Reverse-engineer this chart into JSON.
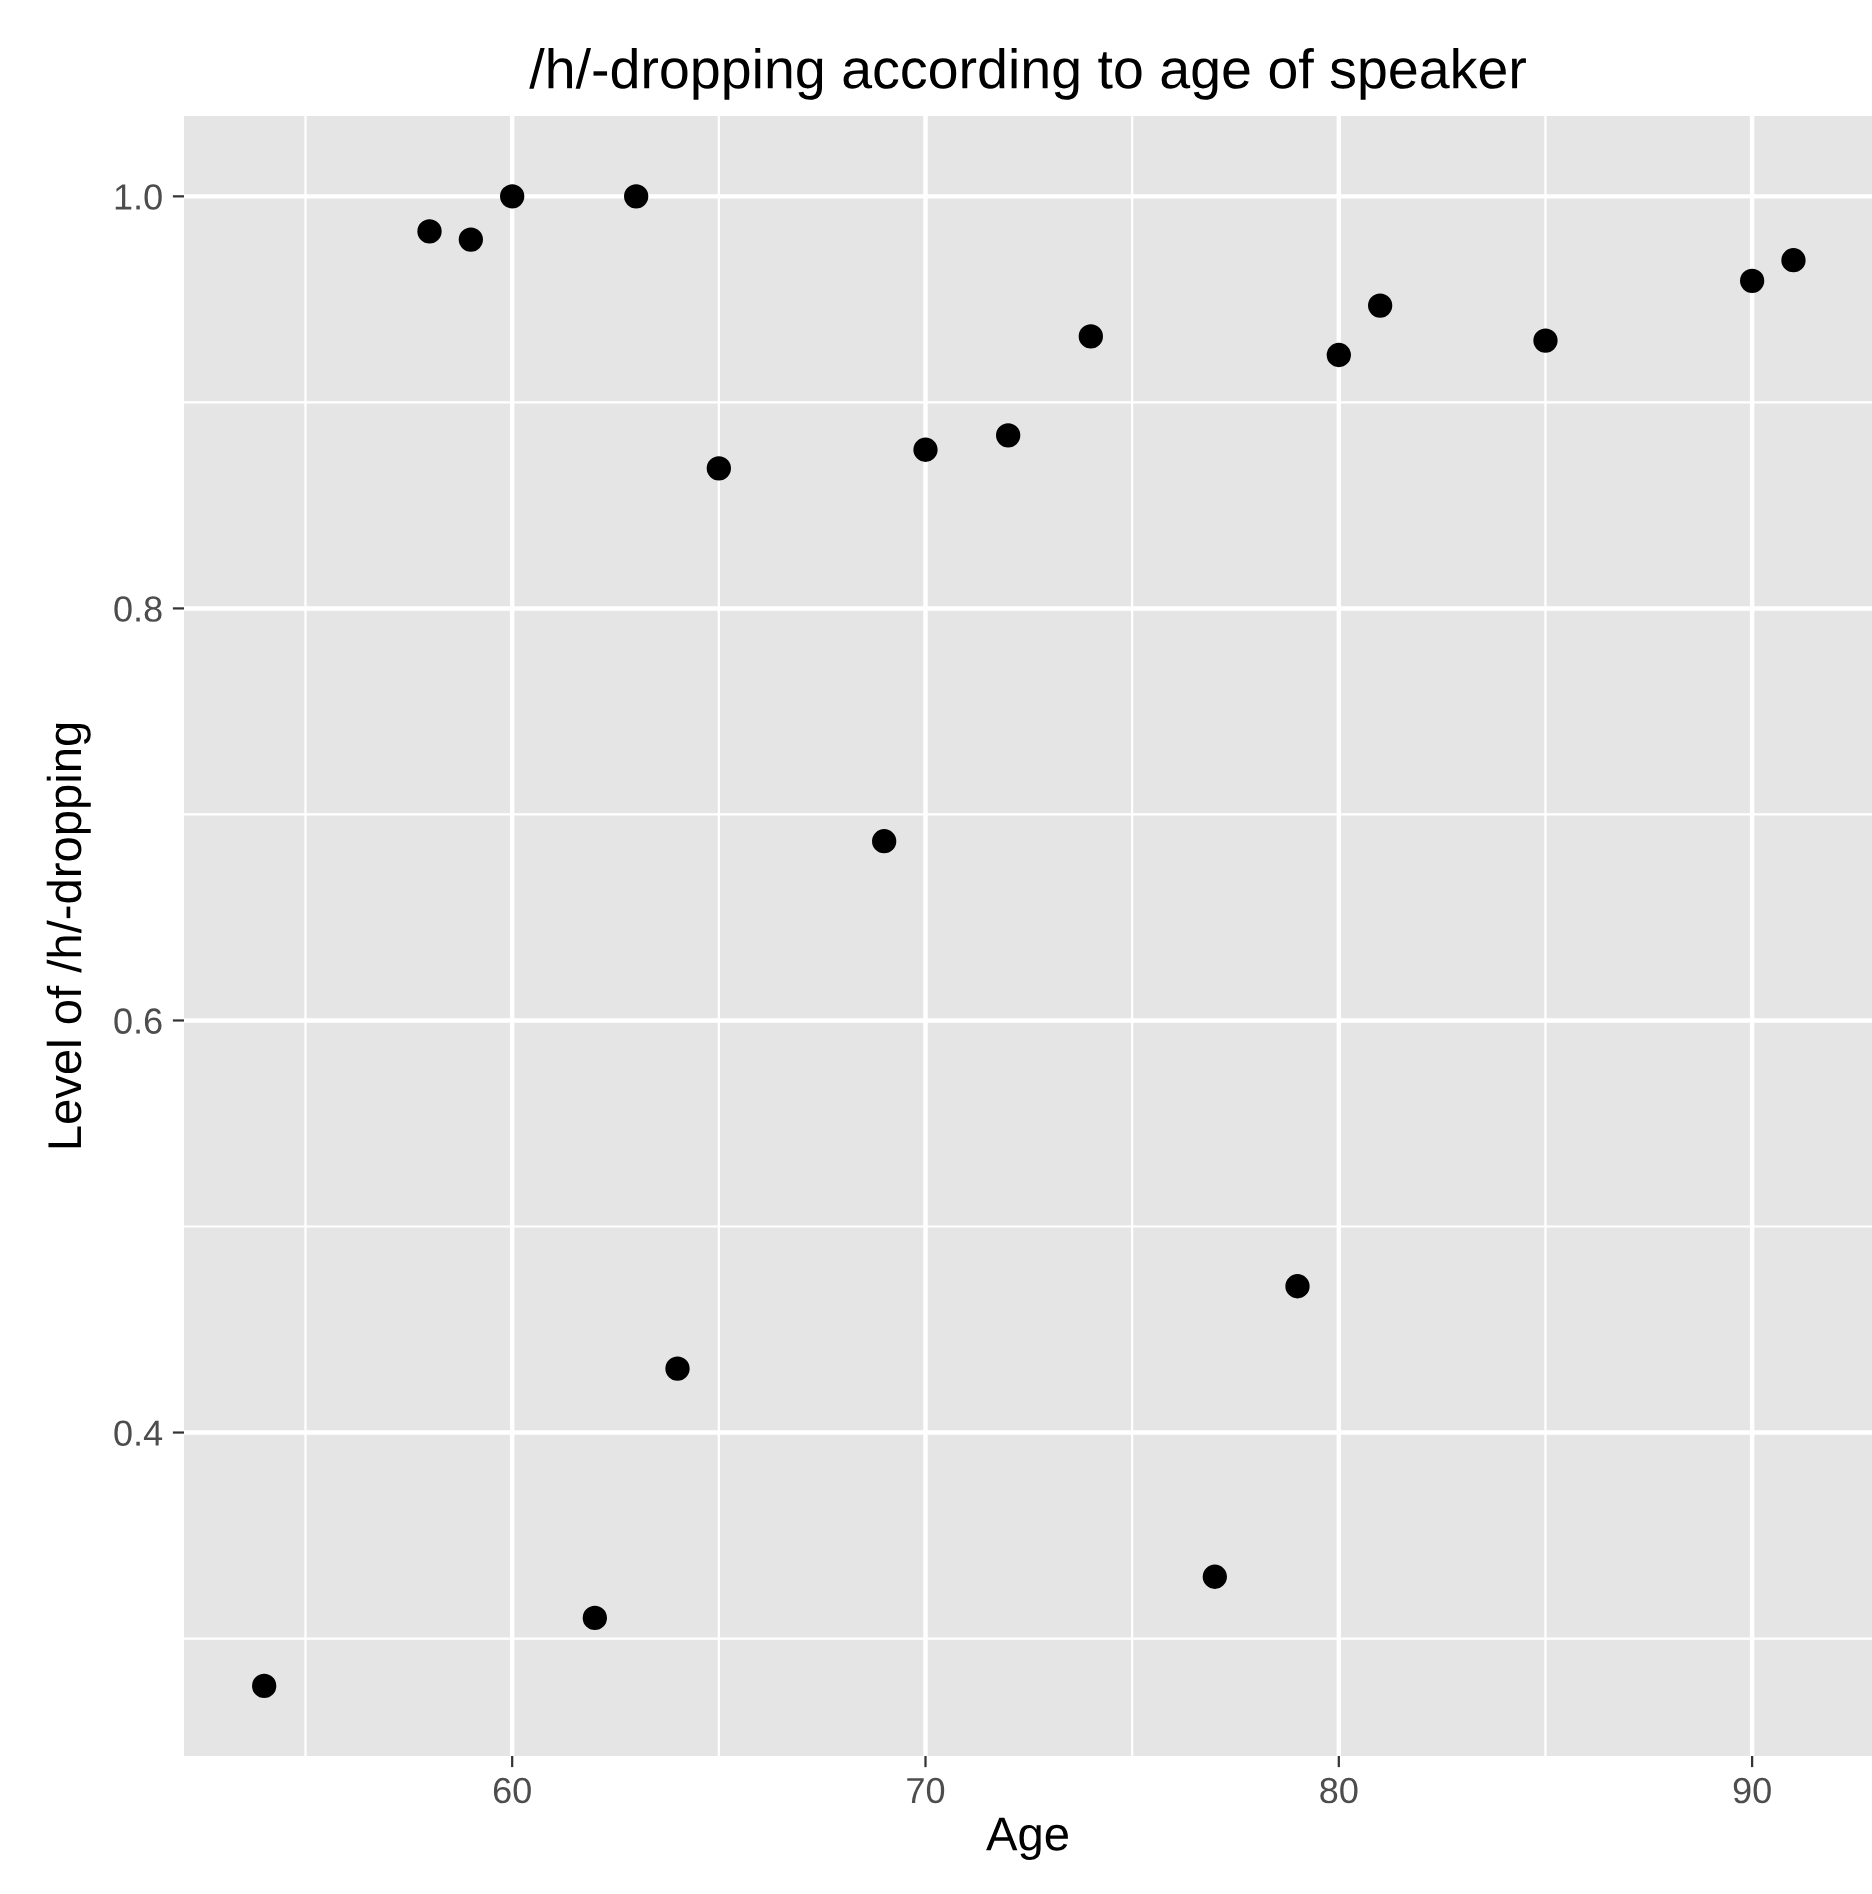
{
  "chart_data": {
    "type": "scatter",
    "title": "/h/-dropping according to age of speaker",
    "xlabel": "Age",
    "ylabel": "Level of /h/-dropping",
    "x": [
      54,
      58,
      59,
      60,
      62,
      63,
      64,
      65,
      69,
      70,
      72,
      74,
      77,
      79,
      80,
      81,
      85,
      90,
      91
    ],
    "series": [
      {
        "color": "#000000",
        "values": [
          0.277,
          0.983,
          0.979,
          1.0,
          0.31,
          1.0,
          0.431,
          0.868,
          0.687,
          0.877,
          0.884,
          0.932,
          0.33,
          0.471,
          0.923,
          0.947,
          0.93,
          0.959,
          0.969
        ]
      }
    ],
    "xlim": [
      52.06,
      92.9
    ],
    "ylim": [
      0.243,
      1.039
    ],
    "xticks": [
      {
        "value": 55,
        "label": null
      },
      60,
      {
        "value": 65,
        "label": null
      },
      70,
      {
        "value": 75,
        "label": null
      },
      80,
      {
        "value": 85,
        "label": null
      },
      90
    ],
    "yticks": [
      {
        "value": 0.3,
        "label": null
      },
      {
        "value": 0.4,
        "label": "0.4"
      },
      {
        "value": 0.5,
        "label": null
      },
      {
        "value": 0.6,
        "label": "0.6"
      },
      {
        "value": 0.7,
        "label": null
      },
      {
        "value": 0.8,
        "label": "0.8"
      },
      {
        "value": 0.9,
        "label": null
      },
      {
        "value": 1.0,
        "label": "1.0"
      }
    ],
    "grid": true,
    "marker": "circle",
    "legend": false
  }
}
